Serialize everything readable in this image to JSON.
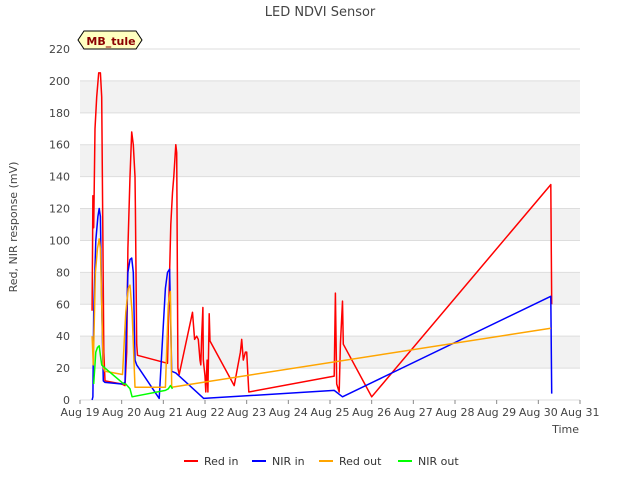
{
  "chart_data": {
    "type": "line",
    "title": "LED NDVI Sensor",
    "xlabel": "Time",
    "ylabel": "Red, NIR response (mV)",
    "xlim": [
      19,
      31
    ],
    "ylim": [
      0,
      220
    ],
    "x_ticks": [
      19,
      20,
      21,
      22,
      23,
      24,
      25,
      26,
      27,
      28,
      29,
      30,
      31
    ],
    "x_tick_labels": [
      "Aug 19",
      "Aug 20",
      "Aug 21",
      "Aug 22",
      "Aug 23",
      "Aug 24",
      "Aug 25",
      "Aug 26",
      "Aug 27",
      "Aug 28",
      "Aug 29",
      "Aug 30",
      "Aug 31"
    ],
    "y_ticks": [
      0,
      20,
      40,
      60,
      80,
      100,
      120,
      140,
      160,
      180,
      200,
      220
    ],
    "grid": true,
    "banded_background": true,
    "annotation": "MB_tule",
    "legend_position": "bottom",
    "series": [
      {
        "name": "Red in",
        "color": "#ff0000",
        "points": [
          [
            19.29,
            56
          ],
          [
            19.31,
            128
          ],
          [
            19.33,
            108
          ],
          [
            19.36,
            170
          ],
          [
            19.4,
            190
          ],
          [
            19.45,
            205
          ],
          [
            19.49,
            205
          ],
          [
            19.52,
            190
          ],
          [
            19.55,
            100
          ],
          [
            19.57,
            30
          ],
          [
            19.6,
            12
          ],
          [
            20.0,
            10
          ],
          [
            20.08,
            9
          ],
          [
            20.12,
            30
          ],
          [
            20.15,
            95
          ],
          [
            20.2,
            140
          ],
          [
            20.24,
            168
          ],
          [
            20.28,
            160
          ],
          [
            20.32,
            140
          ],
          [
            20.33,
            120
          ],
          [
            20.36,
            35
          ],
          [
            20.38,
            28
          ],
          [
            21.1,
            23
          ],
          [
            21.14,
            70
          ],
          [
            21.18,
            110
          ],
          [
            21.22,
            130
          ],
          [
            21.25,
            140
          ],
          [
            21.3,
            160
          ],
          [
            21.32,
            155
          ],
          [
            21.35,
            20
          ],
          [
            21.38,
            16
          ],
          [
            21.7,
            55
          ],
          [
            21.75,
            38
          ],
          [
            21.8,
            40
          ],
          [
            21.84,
            38
          ],
          [
            21.88,
            25
          ],
          [
            21.9,
            22
          ],
          [
            21.92,
            40
          ],
          [
            21.95,
            58
          ],
          [
            21.96,
            25
          ],
          [
            22.0,
            15
          ],
          [
            22.02,
            5
          ],
          [
            22.05,
            25
          ],
          [
            22.07,
            5
          ],
          [
            22.1,
            54
          ],
          [
            22.12,
            37
          ],
          [
            22.7,
            9
          ],
          [
            22.85,
            30
          ],
          [
            22.88,
            38
          ],
          [
            22.92,
            25
          ],
          [
            22.97,
            30
          ],
          [
            23.0,
            30
          ],
          [
            23.05,
            5
          ],
          [
            25.1,
            15
          ],
          [
            25.13,
            67
          ],
          [
            25.16,
            10
          ],
          [
            25.22,
            5
          ],
          [
            25.25,
            35
          ],
          [
            25.3,
            62
          ],
          [
            25.32,
            35
          ],
          [
            26.0,
            2
          ],
          [
            30.3,
            135
          ],
          [
            30.32,
            60
          ]
        ]
      },
      {
        "name": "NIR in",
        "color": "#0000ff",
        "points": [
          [
            19.29,
            0
          ],
          [
            19.31,
            2
          ],
          [
            19.33,
            55
          ],
          [
            19.38,
            100
          ],
          [
            19.43,
            115
          ],
          [
            19.46,
            120
          ],
          [
            19.49,
            115
          ],
          [
            19.52,
            60
          ],
          [
            19.56,
            12
          ],
          [
            19.6,
            11
          ],
          [
            20.0,
            10
          ],
          [
            20.08,
            11
          ],
          [
            20.15,
            80
          ],
          [
            20.2,
            88
          ],
          [
            20.24,
            89
          ],
          [
            20.28,
            80
          ],
          [
            20.32,
            25
          ],
          [
            20.36,
            22
          ],
          [
            20.9,
            1
          ],
          [
            21.05,
            70
          ],
          [
            21.1,
            80
          ],
          [
            21.15,
            82
          ],
          [
            21.2,
            18
          ],
          [
            21.3,
            17
          ],
          [
            21.97,
            1
          ],
          [
            25.1,
            6
          ],
          [
            25.3,
            2
          ],
          [
            30.3,
            65
          ],
          [
            30.32,
            4
          ]
        ]
      },
      {
        "name": "Red out",
        "color": "#ffa500",
        "points": [
          [
            19.29,
            40
          ],
          [
            19.32,
            22
          ],
          [
            19.37,
            80
          ],
          [
            19.42,
            95
          ],
          [
            19.46,
            101
          ],
          [
            19.49,
            95
          ],
          [
            19.53,
            50
          ],
          [
            19.56,
            20
          ],
          [
            19.6,
            18
          ],
          [
            20.02,
            16
          ],
          [
            20.1,
            55
          ],
          [
            20.16,
            70
          ],
          [
            20.2,
            72
          ],
          [
            20.25,
            55
          ],
          [
            20.32,
            8
          ],
          [
            21.05,
            8
          ],
          [
            21.12,
            60
          ],
          [
            21.17,
            68
          ],
          [
            21.2,
            8
          ],
          [
            30.3,
            45
          ]
        ]
      },
      {
        "name": "NIR out",
        "color": "#00ff00",
        "points": [
          [
            19.33,
            10
          ],
          [
            19.38,
            30
          ],
          [
            19.42,
            33
          ],
          [
            19.46,
            34
          ],
          [
            19.49,
            28
          ],
          [
            19.52,
            22
          ],
          [
            19.6,
            20
          ],
          [
            20.05,
            10
          ],
          [
            20.1,
            10
          ],
          [
            20.2,
            7
          ],
          [
            20.25,
            2
          ],
          [
            21.05,
            6
          ],
          [
            21.12,
            7
          ],
          [
            21.17,
            9
          ],
          [
            21.22,
            7
          ]
        ]
      }
    ]
  }
}
